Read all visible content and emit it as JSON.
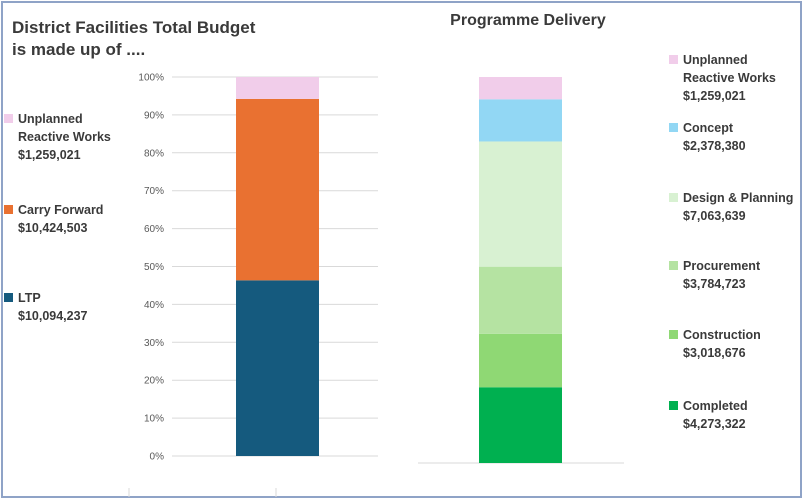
{
  "left_title": "District Facilities Total Budget is made up of ....",
  "right_title": "Programme Delivery",
  "left_legend": [
    {
      "label": "Unplanned Reactive Works",
      "value": "$1,259,021",
      "color": "#f1cdea"
    },
    {
      "label": "Carry Forward",
      "value": "$10,424,503",
      "color": "#e97131"
    },
    {
      "label": "LTP",
      "value": "$10,094,237",
      "color": "#155a7e"
    }
  ],
  "right_legend": [
    {
      "label": "Unplanned Reactive Works",
      "value": "$1,259,021",
      "color": "#f1cdea"
    },
    {
      "label": "Concept",
      "value": "$2,378,380",
      "color": "#92d7f4"
    },
    {
      "label": "Design & Planning",
      "value": "$7,063,639",
      "color": "#d8f1d2"
    },
    {
      "label": "Procurement",
      "value": "$3,784,723",
      "color": "#b5e3a2"
    },
    {
      "label": "Construction",
      "value": "$3,018,676",
      "color": "#8fd874"
    },
    {
      "label": "Completed",
      "value": "$4,273,322",
      "color": "#00b050"
    }
  ],
  "chart_data": [
    {
      "type": "bar",
      "stacked": "percent",
      "title": "District Facilities Total Budget is made up of ....",
      "y_ticks": [
        "0%",
        "10%",
        "20%",
        "30%",
        "40%",
        "50%",
        "60%",
        "70%",
        "80%",
        "90%",
        "100%"
      ],
      "ylim": [
        0,
        100
      ],
      "series": [
        {
          "name": "LTP",
          "values": [
            10094237
          ],
          "color": "#155a7e"
        },
        {
          "name": "Carry Forward",
          "values": [
            10424503
          ],
          "color": "#e97131"
        },
        {
          "name": "Unplanned Reactive Works",
          "values": [
            1259021
          ],
          "color": "#f1cdea"
        }
      ],
      "legend": "left"
    },
    {
      "type": "bar",
      "stacked": "percent",
      "title": "Programme Delivery",
      "ylim": [
        0,
        100
      ],
      "series": [
        {
          "name": "Completed",
          "values": [
            4273322
          ],
          "color": "#00b050"
        },
        {
          "name": "Construction",
          "values": [
            3018676
          ],
          "color": "#8fd874"
        },
        {
          "name": "Procurement",
          "values": [
            3784723
          ],
          "color": "#b5e3a2"
        },
        {
          "name": "Design & Planning",
          "values": [
            7063639
          ],
          "color": "#d8f1d2"
        },
        {
          "name": "Concept",
          "values": [
            2378380
          ],
          "color": "#92d7f4"
        },
        {
          "name": "Unplanned Reactive Works",
          "values": [
            1259021
          ],
          "color": "#f1cdea"
        }
      ],
      "legend": "right"
    }
  ]
}
